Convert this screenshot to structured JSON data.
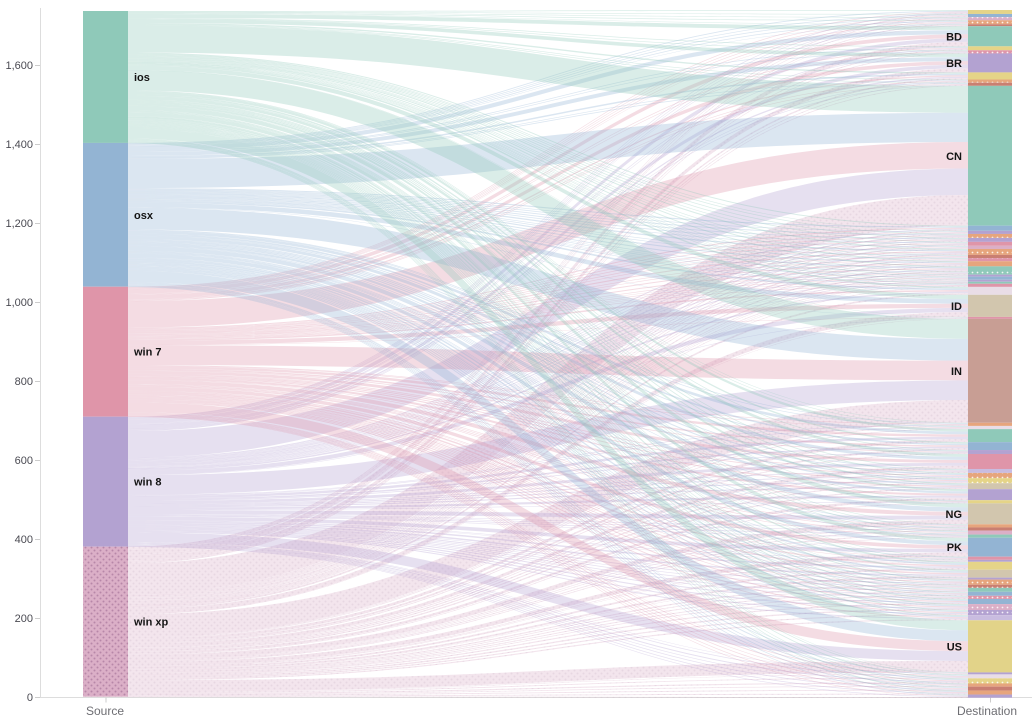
{
  "chart_data": {
    "type": "sankey",
    "title": "",
    "x_axis": {
      "left_label": "Source",
      "right_label": "Destination"
    },
    "y_axis": {
      "tick_labels": [
        "0",
        "200",
        "400",
        "600",
        "800",
        "1,000",
        "1,200",
        "1,400",
        "1,600"
      ],
      "min": 0,
      "max": 1600,
      "units_per_tick": 200
    },
    "legend": "none",
    "link_style": {
      "colored_by": "source",
      "opacity": 0.33,
      "rule": "each destination receives from every source proportionally to source totals"
    },
    "sources": [
      {
        "label": "ios",
        "value": 334,
        "color": "#8fc9b9",
        "dotted": false
      },
      {
        "label": "osx",
        "value": 364,
        "color": "#93b4d3",
        "dotted": false
      },
      {
        "label": "win 7",
        "value": 329,
        "color": "#df95a9",
        "dotted": false
      },
      {
        "label": "win 8",
        "value": 329,
        "color": "#b3a2d1",
        "dotted": false
      },
      {
        "label": "win xp",
        "value": 380,
        "color": "#dbafc7",
        "dotted": true
      }
    ],
    "destinations": [
      {
        "label": "",
        "value": 10,
        "color": "#e5d488",
        "dotted": false
      },
      {
        "label": "",
        "value": 8,
        "color": "#93b4d3",
        "dotted": false
      },
      {
        "label": "",
        "value": 8,
        "color": "#dbafc7",
        "dotted": true
      },
      {
        "label": "",
        "value": 10,
        "color": "#e6a57d",
        "dotted": true
      },
      {
        "label": "",
        "value": 5,
        "color": "#c97f72",
        "dotted": false
      },
      {
        "label": "BD",
        "value": 51,
        "color": "#8fc9b9",
        "dotted": false
      },
      {
        "label": "",
        "value": 10,
        "color": "#e5d488",
        "dotted": false
      },
      {
        "label": "",
        "value": 8,
        "color": "#df95a9",
        "dotted": true
      },
      {
        "label": "BR",
        "value": 48,
        "color": "#b3a2d1",
        "dotted": false
      },
      {
        "label": "",
        "value": 18,
        "color": "#e5d488",
        "dotted": false
      },
      {
        "label": "",
        "value": 8,
        "color": "#e6a57d",
        "dotted": true
      },
      {
        "label": "",
        "value": 8,
        "color": "#c97f72",
        "dotted": false
      },
      {
        "label": "CN",
        "value": 354,
        "color": "#8fc9b9",
        "dotted": false
      },
      {
        "label": "",
        "value": 13,
        "color": "#93b4d3",
        "dotted": false
      },
      {
        "label": "",
        "value": 8,
        "color": "#b3a2d1",
        "dotted": false
      },
      {
        "label": "",
        "value": 10,
        "color": "#e6a57d",
        "dotted": true
      },
      {
        "label": "",
        "value": 10,
        "color": "#b3a2d1",
        "dotted": false
      },
      {
        "label": "",
        "value": 10,
        "color": "#df95a9",
        "dotted": false
      },
      {
        "label": "",
        "value": 8,
        "color": "#dbafc7",
        "dotted": false
      },
      {
        "label": "",
        "value": 15,
        "color": "#e6a57d",
        "dotted": true
      },
      {
        "label": "",
        "value": 8,
        "color": "#c97f72",
        "dotted": false
      },
      {
        "label": "",
        "value": 8,
        "color": "#df95a9",
        "dotted": true
      },
      {
        "label": "",
        "value": 13,
        "color": "#e6a57d",
        "dotted": false
      },
      {
        "label": "",
        "value": 13,
        "color": "#8fc9b9",
        "dotted": false
      },
      {
        "label": "",
        "value": 8,
        "color": "#8fc9b9",
        "dotted": true
      },
      {
        "label": "",
        "value": 5,
        "color": "#b3a2d1",
        "dotted": false
      },
      {
        "label": "",
        "value": 8,
        "color": "#93b4d3",
        "dotted": false
      },
      {
        "label": "",
        "value": 5,
        "color": "#b3a2d1",
        "dotted": false
      },
      {
        "label": "",
        "value": 5,
        "color": "#8fc9b9",
        "dotted": false
      },
      {
        "label": "",
        "value": 8,
        "color": "#df95a9",
        "dotted": false
      },
      {
        "label": "",
        "value": 20,
        "color": "#e9dde7",
        "dotted": false
      },
      {
        "label": "ID",
        "value": 56,
        "color": "#d2c6ae",
        "dotted": false
      },
      {
        "label": "",
        "value": 5,
        "color": "#df95a9",
        "dotted": false
      },
      {
        "label": "IN",
        "value": 263,
        "color": "#c89e94",
        "dotted": false
      },
      {
        "label": "",
        "value": 8,
        "color": "#e6a57d",
        "dotted": false
      },
      {
        "label": "",
        "value": 8,
        "color": "#e9dde7",
        "dotted": false
      },
      {
        "label": "",
        "value": 33,
        "color": "#8fc9b9",
        "dotted": false
      },
      {
        "label": "",
        "value": 20,
        "color": "#93b4d3",
        "dotted": false
      },
      {
        "label": "",
        "value": 10,
        "color": "#b3a2d1",
        "dotted": false
      },
      {
        "label": "",
        "value": 38,
        "color": "#df95a9",
        "dotted": false
      },
      {
        "label": "",
        "value": 10,
        "color": "#c9bce0",
        "dotted": false
      },
      {
        "label": "",
        "value": 13,
        "color": "#e6a57d",
        "dotted": true
      },
      {
        "label": "",
        "value": 13,
        "color": "#e5d488",
        "dotted": true
      },
      {
        "label": "",
        "value": 15,
        "color": "#d2c6ae",
        "dotted": false
      },
      {
        "label": "",
        "value": 28,
        "color": "#b3a2d1",
        "dotted": false
      },
      {
        "label": "",
        "value": 8,
        "color": "#e5d488",
        "dotted": false
      },
      {
        "label": "NG",
        "value": 53,
        "color": "#d2c6ae",
        "dotted": false
      },
      {
        "label": "",
        "value": 8,
        "color": "#e6a57d",
        "dotted": false
      },
      {
        "label": "",
        "value": 8,
        "color": "#c97f72",
        "dotted": false
      },
      {
        "label": "",
        "value": 10,
        "color": "#dbafc7",
        "dotted": false
      },
      {
        "label": "",
        "value": 8,
        "color": "#8fc9b9",
        "dotted": false
      },
      {
        "label": "PK",
        "value": 48,
        "color": "#93b4d3",
        "dotted": false
      },
      {
        "label": "",
        "value": 8,
        "color": "#df95a9",
        "dotted": false
      },
      {
        "label": "",
        "value": 5,
        "color": "#b3a2d1",
        "dotted": false
      },
      {
        "label": "",
        "value": 20,
        "color": "#e5d488",
        "dotted": false
      },
      {
        "label": "",
        "value": 20,
        "color": "#d2c6ae",
        "dotted": false
      },
      {
        "label": "",
        "value": 5,
        "color": "#b3a2d1",
        "dotted": false
      },
      {
        "label": "",
        "value": 13,
        "color": "#e6a57d",
        "dotted": true
      },
      {
        "label": "",
        "value": 8,
        "color": "#c97f72",
        "dotted": true
      },
      {
        "label": "",
        "value": 10,
        "color": "#8fc9b9",
        "dotted": false
      },
      {
        "label": "",
        "value": 10,
        "color": "#93b4d3",
        "dotted": false
      },
      {
        "label": "",
        "value": 8,
        "color": "#df95a9",
        "dotted": true
      },
      {
        "label": "",
        "value": 13,
        "color": "#93b4d3",
        "dotted": false
      },
      {
        "label": "",
        "value": 15,
        "color": "#dbafc7",
        "dotted": true
      },
      {
        "label": "",
        "value": 13,
        "color": "#b3a2d1",
        "dotted": true
      },
      {
        "label": "",
        "value": 13,
        "color": "#c9bce0",
        "dotted": false
      },
      {
        "label": "US",
        "value": 132,
        "color": "#e2d389",
        "dotted": false
      },
      {
        "label": "",
        "value": 5,
        "color": "#b3a2d1",
        "dotted": false
      },
      {
        "label": "",
        "value": 10,
        "color": "#e9dde7",
        "dotted": false
      },
      {
        "label": "",
        "value": 13,
        "color": "#e5d488",
        "dotted": true
      },
      {
        "label": "",
        "value": 8,
        "color": "#e6a57d",
        "dotted": false
      },
      {
        "label": "",
        "value": 10,
        "color": "#c97f72",
        "dotted": false
      },
      {
        "label": "",
        "value": 10,
        "color": "#e6a57d",
        "dotted": false
      },
      {
        "label": "",
        "value": 8,
        "color": "#b3a2d1",
        "dotted": false
      }
    ]
  }
}
